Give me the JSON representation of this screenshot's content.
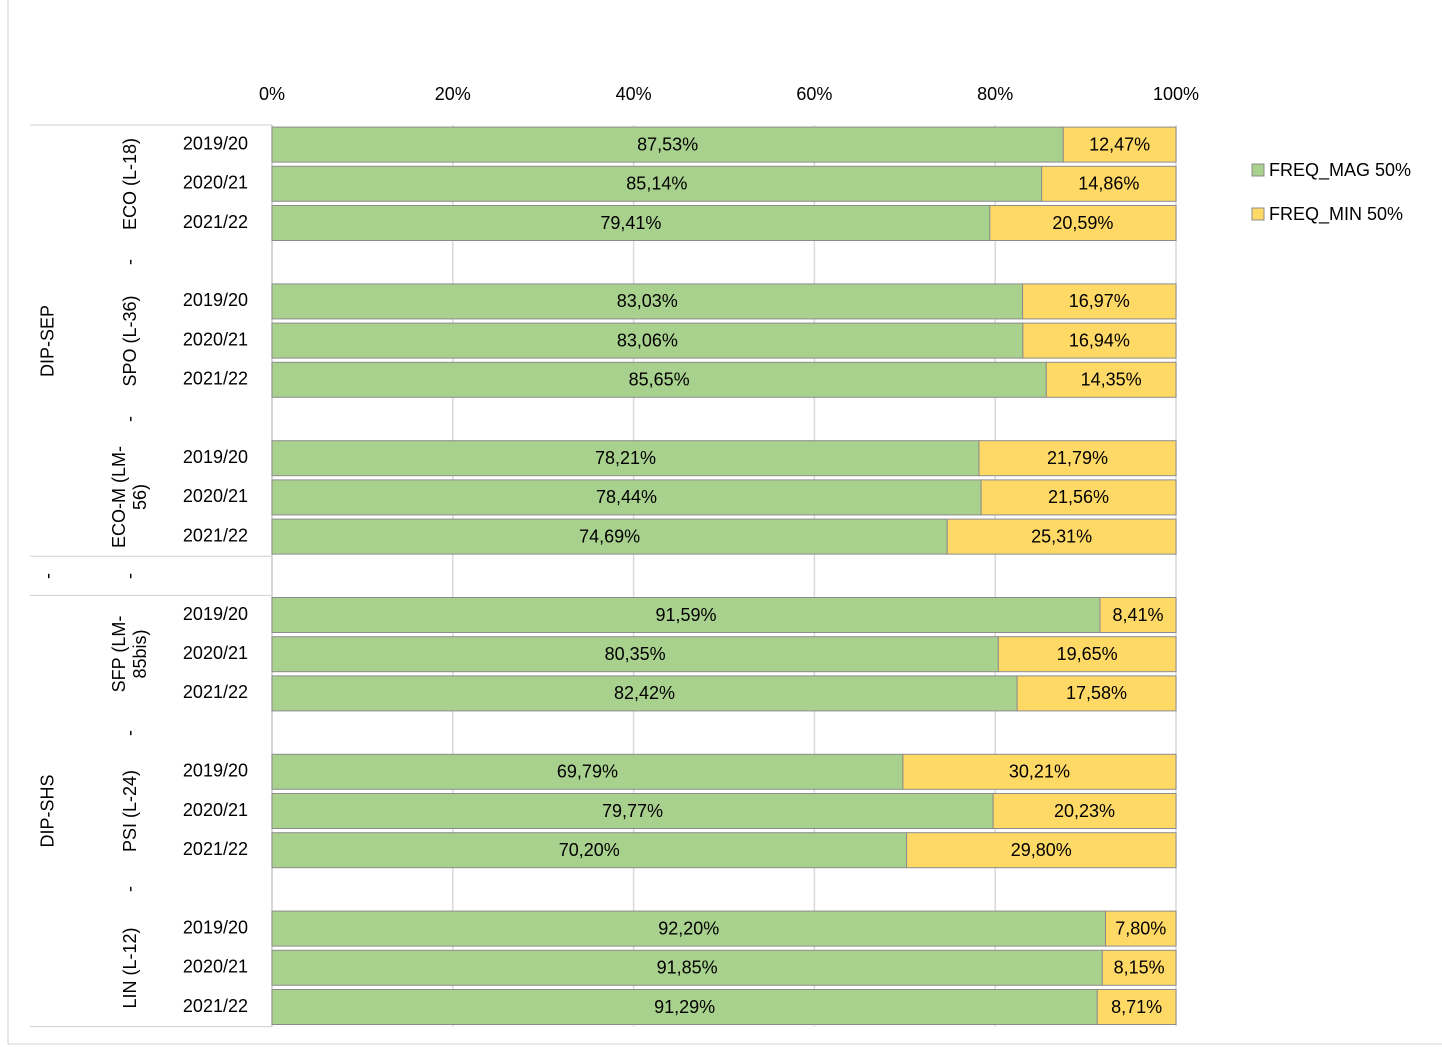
{
  "chart_data": {
    "type": "stacked_bar_horizontal",
    "categories": [
      "2019/20",
      "2020/21",
      "2021/22",
      null,
      "2019/20",
      "2020/21",
      "2021/22",
      null,
      "2019/20",
      "2020/21",
      "2021/22",
      null,
      "2019/20",
      "2020/21",
      "2021/22",
      null,
      "2019/20",
      "2020/21",
      "2021/22",
      null,
      "2019/20",
      "2020/21",
      "2021/22"
    ],
    "groups": [
      {
        "label": "ECO (L-18)",
        "rows": 3
      },
      {
        "label": "-",
        "rows": 1
      },
      {
        "label": "SPO (L-36)",
        "rows": 3
      },
      {
        "label": "-",
        "rows": 1
      },
      {
        "label": "ECO-M (LM-56)",
        "rows": 3
      },
      {
        "label": "-",
        "rows": 1
      },
      {
        "label": "SFP (LM-85bis)",
        "rows": 3
      },
      {
        "label": "-",
        "rows": 1
      },
      {
        "label": "PSI (L-24)",
        "rows": 3
      },
      {
        "label": "-",
        "rows": 1
      },
      {
        "label": "LIN (L-12)",
        "rows": 3
      }
    ],
    "supergroups": [
      {
        "label": "DIP-SEP",
        "rows": 11
      },
      {
        "label": "-",
        "rows": 1
      },
      {
        "label": "DIP-SHS",
        "rows": 11
      }
    ],
    "series": [
      {
        "name": "FREQ_MAG 50%",
        "color": "#a9d18e",
        "values": [
          87.53,
          85.14,
          79.41,
          null,
          83.03,
          83.06,
          85.65,
          null,
          78.21,
          78.44,
          74.69,
          null,
          91.59,
          80.35,
          82.42,
          null,
          69.79,
          79.77,
          70.2,
          null,
          92.2,
          91.85,
          91.29
        ],
        "value_labels": [
          "87,53%",
          "85,14%",
          "79,41%",
          null,
          "83,03%",
          "83,06%",
          "85,65%",
          null,
          "78,21%",
          "78,44%",
          "74,69%",
          null,
          "91,59%",
          "80,35%",
          "82,42%",
          null,
          "69,79%",
          "79,77%",
          "70,20%",
          null,
          "92,20%",
          "91,85%",
          "91,29%"
        ]
      },
      {
        "name": "FREQ_MIN 50%",
        "color": "#ffd966",
        "values": [
          12.47,
          14.86,
          20.59,
          null,
          16.97,
          16.94,
          14.35,
          null,
          21.79,
          21.56,
          25.31,
          null,
          8.41,
          19.65,
          17.58,
          null,
          30.21,
          20.23,
          29.8,
          null,
          7.8,
          8.15,
          8.71
        ],
        "value_labels": [
          "12,47%",
          "14,86%",
          "20,59%",
          null,
          "16,97%",
          "16,94%",
          "14,35%",
          null,
          "21,79%",
          "21,56%",
          "25,31%",
          null,
          "8,41%",
          "19,65%",
          "17,58%",
          null,
          "30,21%",
          "20,23%",
          "29,80%",
          null,
          "7,80%",
          "8,15%",
          "8,71%"
        ]
      }
    ],
    "xlim": [
      0,
      100
    ],
    "xticks": [
      {
        "value": 0,
        "label": "0%"
      },
      {
        "value": 20,
        "label": "20%"
      },
      {
        "value": 40,
        "label": "40%"
      },
      {
        "value": 60,
        "label": "60%"
      },
      {
        "value": 80,
        "label": "80%"
      },
      {
        "value": 100,
        "label": "100%"
      }
    ],
    "grid": true,
    "legend": "right"
  }
}
